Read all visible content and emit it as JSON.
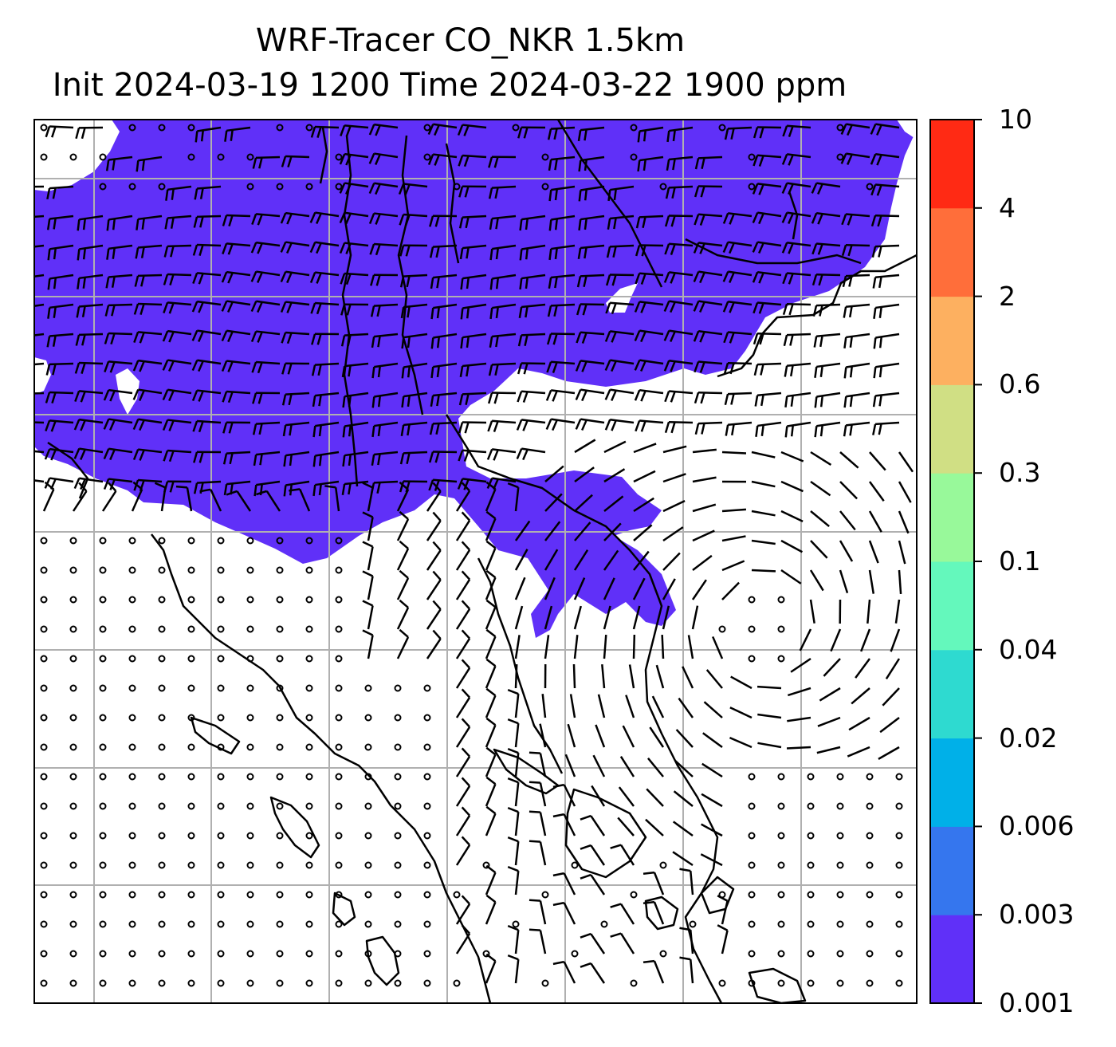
{
  "title": {
    "line1": "WRF-Tracer CO_NKR 1.5km",
    "line2": "Init 2024-03-19 1200 Time 2024-03-22 1900 ppm"
  },
  "colorbar": {
    "ticks": [
      "0.001",
      "0.003",
      "0.006",
      "0.02",
      "0.04",
      "0.1",
      "0.3",
      "0.6",
      "2",
      "4",
      "10"
    ],
    "colors": [
      "#6030f8",
      "#3576ee",
      "#00b0e8",
      "#2edad0",
      "#64f8bc",
      "#98f99a",
      "#d0df84",
      "#fdb060",
      "#ff6e3a",
      "#ff2a14"
    ]
  },
  "map": {
    "plume_color": "#6030f8",
    "grid_color": "#b0b0b0"
  }
}
